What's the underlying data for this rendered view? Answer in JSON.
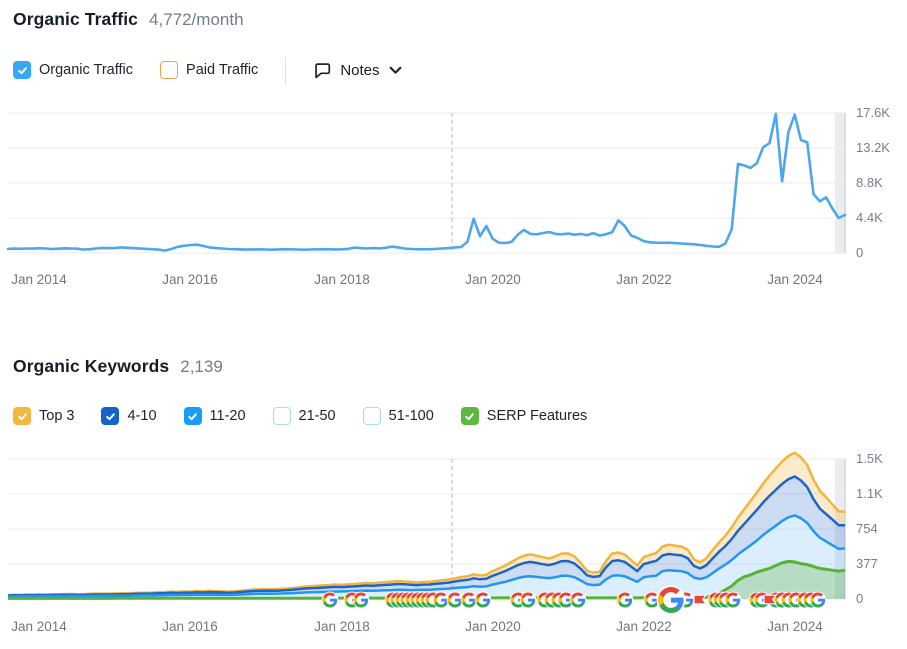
{
  "traffic_section": {
    "title": "Organic Traffic",
    "metric": "4,772/month",
    "notes_label": "Notes",
    "legend": {
      "organic": {
        "label": "Organic Traffic",
        "checked": true,
        "color": "#38a7f5"
      },
      "paid": {
        "label": "Paid Traffic",
        "checked": false,
        "border": "#f2a04d"
      }
    }
  },
  "keywords_section": {
    "title": "Organic Keywords",
    "metric": "2,139",
    "legend": [
      {
        "label": "Top 3",
        "checked": true,
        "color": "#f4b63f"
      },
      {
        "label": "4-10",
        "checked": true,
        "color": "#1761c7"
      },
      {
        "label": "11-20",
        "checked": true,
        "color": "#1a9bf7"
      },
      {
        "label": "21-50",
        "checked": false,
        "border": "#a9d9f8"
      },
      {
        "label": "51-100",
        "checked": false,
        "border": "#a9d9f8"
      },
      {
        "label": "SERP Features",
        "checked": true,
        "color": "#5db83f"
      }
    ]
  },
  "colors": {
    "grid": "#e9ebee",
    "dashed": "#b6bac2",
    "band": "#eaecf0",
    "band_edge": "#d2d6db",
    "traffic_line": "#4da6ee",
    "top3_line": "#f2b43c",
    "top3_fill": "rgba(244,182,66,0.28)",
    "s410_line": "#1c64cb",
    "s410_fill": "rgba(23,97,199,0.22)",
    "s1120_line": "#2196f3",
    "s1120_fill": "rgba(33,150,243,0.16)",
    "serp_line": "#56b334",
    "serp_fill": "rgba(96,180,62,0.30)",
    "flag_red": "#e8453c"
  },
  "chart_data": [
    {
      "type": "line",
      "title": "Organic Traffic",
      "x_range": [
        "Aug 2013",
        "Sep 2024"
      ],
      "interval": "monthly",
      "y_max": 17600,
      "y_ticks": [
        "17.6K",
        "13.2K",
        "8.8K",
        "4.4K",
        "0"
      ],
      "x_ticks": [
        {
          "label": "Jan 2014",
          "p": 0.0376
        },
        {
          "label": "Jan 2016",
          "p": 0.218
        },
        {
          "label": "Jan 2018",
          "p": 0.3985
        },
        {
          "label": "Jan 2020",
          "p": 0.5789
        },
        {
          "label": "Jan 2022",
          "p": 0.7594
        },
        {
          "label": "Jan 2024",
          "p": 0.9398
        }
      ],
      "dashed_line_p": 0.5305,
      "current_period_band_p": 0.988,
      "series": [
        {
          "name": "Organic Traffic",
          "values": [
            520,
            555,
            530,
            570,
            550,
            600,
            560,
            490,
            540,
            590,
            560,
            540,
            430,
            480,
            560,
            640,
            600,
            620,
            700,
            650,
            600,
            550,
            510,
            480,
            420,
            300,
            520,
            780,
            900,
            1000,
            1040,
            890,
            700,
            620,
            560,
            500,
            480,
            450,
            430,
            450,
            470,
            440,
            420,
            450,
            480,
            460,
            440,
            420,
            440,
            460,
            480,
            460,
            450,
            470,
            520,
            680,
            620,
            560,
            620,
            580,
            650,
            800,
            700,
            560,
            500,
            480,
            460,
            480,
            520,
            560,
            620,
            680,
            750,
            1400,
            4300,
            2100,
            3400,
            1800,
            1300,
            1250,
            1400,
            2300,
            2900,
            2400,
            2350,
            2500,
            2640,
            2400,
            2350,
            2450,
            2300,
            2400,
            2250,
            2500,
            2200,
            2350,
            2600,
            4100,
            3400,
            2200,
            1900,
            1500,
            1350,
            1300,
            1280,
            1300,
            1250,
            1200,
            1150,
            1100,
            1000,
            900,
            820,
            780,
            1200,
            3000,
            11200,
            11000,
            10700,
            11300,
            13300,
            13800,
            17500,
            9000,
            15200,
            17400,
            14200,
            13900,
            7400,
            6500,
            7000,
            5600,
            4400,
            4772
          ]
        }
      ]
    },
    {
      "type": "area",
      "title": "Organic Keywords",
      "x_range": [
        "Aug 2013",
        "Sep 2024"
      ],
      "interval": "monthly",
      "y_max": 1508,
      "y_ticks": [
        "1.5K",
        "1.1K",
        "754",
        "377",
        "0"
      ],
      "x_ticks": [
        {
          "label": "Jan 2014",
          "p": 0.0376
        },
        {
          "label": "Jan 2016",
          "p": 0.218
        },
        {
          "label": "Jan 2018",
          "p": 0.3985
        },
        {
          "label": "Jan 2020",
          "p": 0.5789
        },
        {
          "label": "Jan 2022",
          "p": 0.7594
        },
        {
          "label": "Jan 2024",
          "p": 0.9398
        }
      ],
      "dashed_line_p": 0.5305,
      "current_period_band_p": 0.988,
      "stacked_series": [
        {
          "name": "11-20",
          "values": [
            26,
            28,
            27,
            29,
            28,
            30,
            28,
            29,
            31,
            30,
            32,
            31,
            30,
            32,
            33,
            34,
            33,
            34,
            36,
            35,
            37,
            38,
            40,
            39,
            41,
            42,
            44,
            43,
            45,
            44,
            46,
            45,
            47,
            46,
            45,
            44,
            45,
            48,
            52,
            55,
            56,
            58,
            57,
            58,
            60,
            62,
            66,
            70,
            72,
            74,
            76,
            78,
            80,
            82,
            84,
            86,
            88,
            90,
            88,
            92,
            94,
            96,
            100,
            98,
            96,
            98,
            100,
            98,
            104,
            108,
            112,
            118,
            124,
            128,
            138,
            132,
            136,
            155,
            170,
            185,
            205,
            225,
            240,
            245,
            238,
            230,
            225,
            235,
            250,
            250,
            235,
            200,
            160,
            150,
            155,
            210,
            250,
            255,
            245,
            215,
            185,
            235,
            245,
            250,
            300,
            310,
            305,
            300,
            280,
            230,
            215,
            235,
            280,
            330,
            370,
            420,
            480,
            530,
            580,
            630,
            690,
            740,
            790,
            840,
            880,
            900,
            870,
            820,
            730,
            660,
            620,
            580,
            540,
            545
          ]
        },
        {
          "name": "4-10",
          "values": [
            11,
            12,
            11,
            13,
            12,
            13,
            12,
            14,
            13,
            15,
            14,
            13,
            14,
            15,
            16,
            15,
            16,
            16,
            15,
            17,
            18,
            19,
            18,
            20,
            21,
            22,
            23,
            22,
            24,
            24,
            26,
            25,
            27,
            26,
            25,
            24,
            25,
            27,
            29,
            31,
            32,
            33,
            32,
            33,
            35,
            36,
            39,
            42,
            44,
            45,
            47,
            48,
            50,
            46,
            48,
            50,
            52,
            55,
            53,
            56,
            58,
            60,
            62,
            60,
            58,
            52,
            55,
            58,
            60,
            62,
            65,
            70,
            75,
            78,
            85,
            80,
            82,
            95,
            105,
            115,
            128,
            140,
            148,
            155,
            150,
            145,
            140,
            148,
            158,
            158,
            148,
            125,
            95,
            88,
            92,
            130,
            158,
            162,
            155,
            135,
            115,
            140,
            150,
            160,
            170,
            175,
            172,
            170,
            160,
            125,
            115,
            130,
            160,
            180,
            200,
            225,
            255,
            280,
            305,
            330,
            350,
            370,
            385,
            400,
            410,
            420,
            408,
            385,
            345,
            315,
            295,
            275,
            255,
            250
          ]
        },
        {
          "name": "Top 3",
          "values": [
            6,
            6,
            7,
            6,
            7,
            7,
            8,
            7,
            8,
            8,
            9,
            8,
            9,
            9,
            10,
            9,
            10,
            9,
            10,
            9,
            10,
            11,
            10,
            11,
            12,
            11,
            12,
            13,
            12,
            13,
            14,
            13,
            14,
            13,
            13,
            12,
            13,
            14,
            15,
            16,
            16,
            16,
            16,
            17,
            17,
            18,
            19,
            21,
            22,
            23,
            24,
            25,
            26,
            24,
            25,
            26,
            27,
            28,
            27,
            29,
            30,
            31,
            32,
            31,
            30,
            27,
            29,
            28,
            30,
            31,
            33,
            35,
            37,
            39,
            43,
            41,
            42,
            50,
            55,
            60,
            66,
            72,
            78,
            80,
            78,
            75,
            72,
            76,
            82,
            82,
            76,
            64,
            48,
            45,
            47,
            66,
            82,
            84,
            80,
            70,
            60,
            75,
            80,
            85,
            95,
            100,
            98,
            96,
            90,
            70,
            65,
            75,
            90,
            100,
            112,
            126,
            142,
            158,
            172,
            188,
            204,
            218,
            230,
            242,
            250,
            255,
            248,
            238,
            212,
            192,
            178,
            165,
            150,
            145
          ]
        }
      ],
      "overlay_series": {
        "name": "SERP Features",
        "values": [
          6,
          6,
          6,
          6,
          6,
          7,
          7,
          7,
          7,
          7,
          7,
          7,
          7,
          7,
          7,
          7,
          7,
          8,
          8,
          8,
          8,
          8,
          8,
          8,
          8,
          8,
          8,
          8,
          8,
          9,
          9,
          9,
          9,
          9,
          9,
          9,
          9,
          9,
          9,
          9,
          9,
          9,
          9,
          9,
          9,
          9,
          9,
          9,
          9,
          9,
          9,
          9,
          9,
          10,
          10,
          10,
          10,
          10,
          10,
          10,
          10,
          10,
          10,
          10,
          10,
          10,
          10,
          10,
          10,
          10,
          10,
          10,
          10,
          10,
          10,
          10,
          10,
          12,
          12,
          12,
          12,
          12,
          12,
          12,
          12,
          12,
          12,
          12,
          12,
          12,
          12,
          12,
          12,
          12,
          12,
          12,
          12,
          12,
          12,
          12,
          12,
          14,
          14,
          14,
          14,
          14,
          14,
          14,
          14,
          15,
          16,
          20,
          30,
          60,
          100,
          140,
          200,
          240,
          260,
          290,
          310,
          330,
          360,
          390,
          405,
          400,
          380,
          370,
          350,
          330,
          320,
          310,
          300,
          310
        ]
      },
      "events": [
        {
          "p": 0.3847,
          "type": "google-update"
        },
        {
          "p": 0.411,
          "type": "google-update"
        },
        {
          "p": 0.4218,
          "type": "google-update"
        },
        {
          "p": 0.46,
          "type": "google-update"
        },
        {
          "p": 0.466,
          "type": "google-update"
        },
        {
          "p": 0.4719,
          "type": "google-update"
        },
        {
          "p": 0.4779,
          "type": "google-update"
        },
        {
          "p": 0.4839,
          "type": "google-update"
        },
        {
          "p": 0.4899,
          "type": "google-update"
        },
        {
          "p": 0.4958,
          "type": "google-update"
        },
        {
          "p": 0.5018,
          "type": "google-update"
        },
        {
          "p": 0.5078,
          "type": "google-update"
        },
        {
          "p": 0.5174,
          "type": "google-update"
        },
        {
          "p": 0.5341,
          "type": "google-update"
        },
        {
          "p": 0.5508,
          "type": "google-update"
        },
        {
          "p": 0.5675,
          "type": "google-update"
        },
        {
          "p": 0.6094,
          "type": "google-update"
        },
        {
          "p": 0.6213,
          "type": "google-update"
        },
        {
          "p": 0.6416,
          "type": "google-update"
        },
        {
          "p": 0.65,
          "type": "google-update"
        },
        {
          "p": 0.6583,
          "type": "google-update"
        },
        {
          "p": 0.6667,
          "type": "google-update"
        },
        {
          "p": 0.681,
          "type": "google-update"
        },
        {
          "p": 0.7372,
          "type": "google-update"
        },
        {
          "p": 0.7694,
          "type": "google-update"
        },
        {
          "p": 0.7921,
          "type": "google-update",
          "size": "large"
        },
        {
          "p": 0.81,
          "type": "google-update"
        },
        {
          "p": 0.8268,
          "type": "flag"
        },
        {
          "p": 0.8459,
          "type": "google-update"
        },
        {
          "p": 0.8518,
          "type": "google-update"
        },
        {
          "p": 0.8578,
          "type": "google-update"
        },
        {
          "p": 0.8662,
          "type": "google-update"
        },
        {
          "p": 0.8949,
          "type": "google-update"
        },
        {
          "p": 0.9008,
          "type": "google-update"
        },
        {
          "p": 0.9104,
          "type": "flag"
        },
        {
          "p": 0.9176,
          "type": "google-update"
        },
        {
          "p": 0.9247,
          "type": "google-update"
        },
        {
          "p": 0.9331,
          "type": "google-update"
        },
        {
          "p": 0.9415,
          "type": "google-update"
        },
        {
          "p": 0.9522,
          "type": "google-update"
        },
        {
          "p": 0.9594,
          "type": "google-update"
        },
        {
          "p": 0.9677,
          "type": "google-update"
        }
      ]
    }
  ]
}
